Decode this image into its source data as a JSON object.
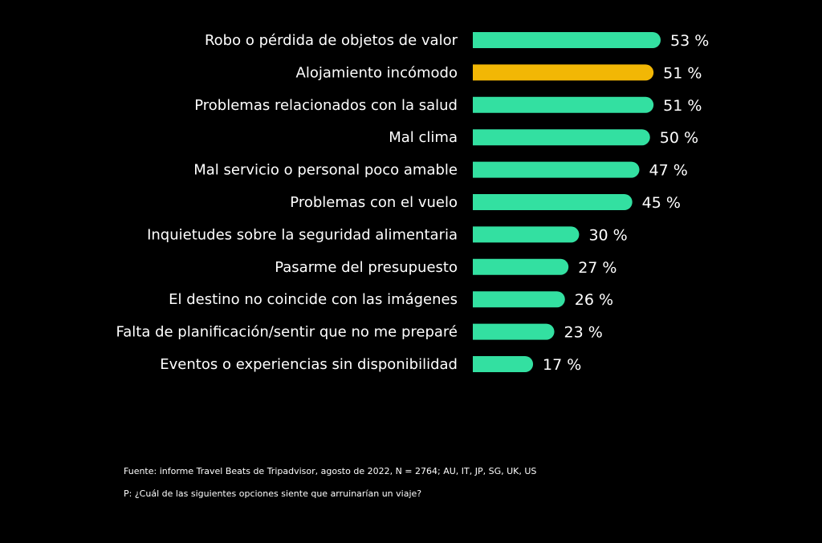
{
  "chart_data": {
    "type": "bar",
    "orientation": "horizontal",
    "categories": [
      "Robo o pérdida de objetos de valor",
      "Alojamiento incómodo",
      "Problemas relacionados con la salud",
      "Mal clima",
      "Mal servicio o personal poco amable",
      "Problemas con el vuelo",
      "Inquietudes sobre la seguridad alimentaria",
      "Pasarme del presupuesto",
      "El destino no coincide con las imágenes",
      "Falta de planificación/sentir que no me preparé",
      "Eventos o experiencias sin disponibilidad"
    ],
    "values": [
      53,
      51,
      51,
      50,
      47,
      45,
      30,
      27,
      26,
      23,
      17
    ],
    "value_labels": [
      "53 %",
      "51 %",
      "51 %",
      "50 %",
      "47 %",
      "45 %",
      "30 %",
      "27 %",
      "26 %",
      "23 %",
      "17 %"
    ],
    "highlight_index": 1,
    "colors": {
      "bar": "#33e0a1",
      "highlight": "#f2b705",
      "background": "#000000",
      "text": "#ffffff"
    },
    "xlim": [
      0,
      53
    ],
    "grid": false,
    "legend": "none"
  },
  "footnotes": {
    "source": "Fuente: informe Travel Beats de Tripadvisor, agosto de 2022, N = 2764; AU, IT, JP, SG, UK, US",
    "question": "P: ¿Cuál de las siguientes opciones siente que arruinarían un viaje?"
  }
}
